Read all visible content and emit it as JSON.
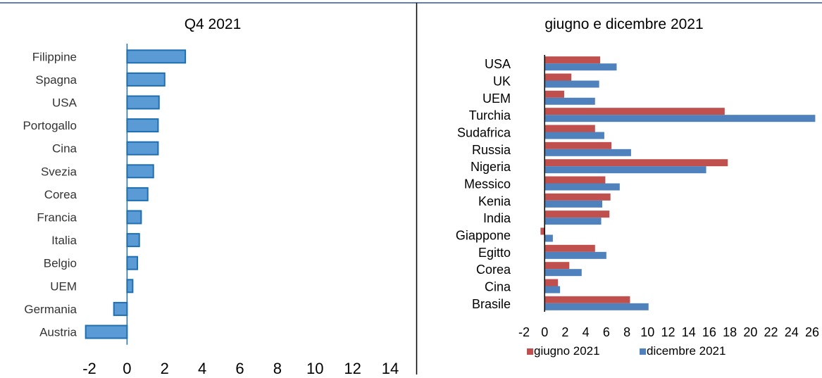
{
  "chart_data": [
    {
      "type": "bar",
      "orientation": "horizontal",
      "title": "Q4 2021",
      "categories": [
        "Filippine",
        "Spagna",
        "USA",
        "Portogallo",
        "Cina",
        "Svezia",
        "Corea",
        "Francia",
        "Italia",
        "Belgio",
        "UEM",
        "Germania",
        "Austria"
      ],
      "values": [
        3.1,
        2.0,
        1.7,
        1.65,
        1.65,
        1.4,
        1.1,
        0.75,
        0.65,
        0.55,
        0.3,
        -0.7,
        -2.2
      ],
      "xlim": [
        -2,
        14
      ],
      "xticks": [
        "-2",
        "0",
        "2",
        "4",
        "6",
        "8",
        "10",
        "12",
        "14"
      ],
      "grid": false,
      "colors": {
        "fill": "#5b9bd5",
        "stroke": "#1f6fb0"
      }
    },
    {
      "type": "bar",
      "orientation": "horizontal",
      "title": "giugno e dicembre 2021",
      "categories": [
        "USA",
        "UK",
        "UEM",
        "Turchia",
        "Sudafrica",
        "Russia",
        "Nigeria",
        "Messico",
        "Kenia",
        "India",
        "Giappone",
        "Egitto",
        "Corea",
        "Cina",
        "Brasile"
      ],
      "series": [
        {
          "name": "giugno 2021",
          "color": "#c0504d",
          "values": [
            5.4,
            2.6,
            1.9,
            17.5,
            4.9,
            6.5,
            17.8,
            5.9,
            6.4,
            6.3,
            -0.4,
            4.9,
            2.4,
            1.3,
            8.3
          ]
        },
        {
          "name": "dicembre 2021",
          "color": "#4f81bd",
          "values": [
            7.0,
            5.3,
            4.9,
            26.3,
            5.8,
            8.4,
            15.7,
            7.3,
            5.6,
            5.5,
            0.8,
            6.0,
            3.6,
            1.5,
            10.1
          ]
        }
      ],
      "xlim": [
        -2,
        26
      ],
      "xticks": [
        "-2",
        "0",
        "2",
        "4",
        "6",
        "8",
        "10",
        "12",
        "14",
        "16",
        "18",
        "20",
        "22",
        "24",
        "26"
      ],
      "grid": false,
      "legend": "bottom"
    }
  ]
}
